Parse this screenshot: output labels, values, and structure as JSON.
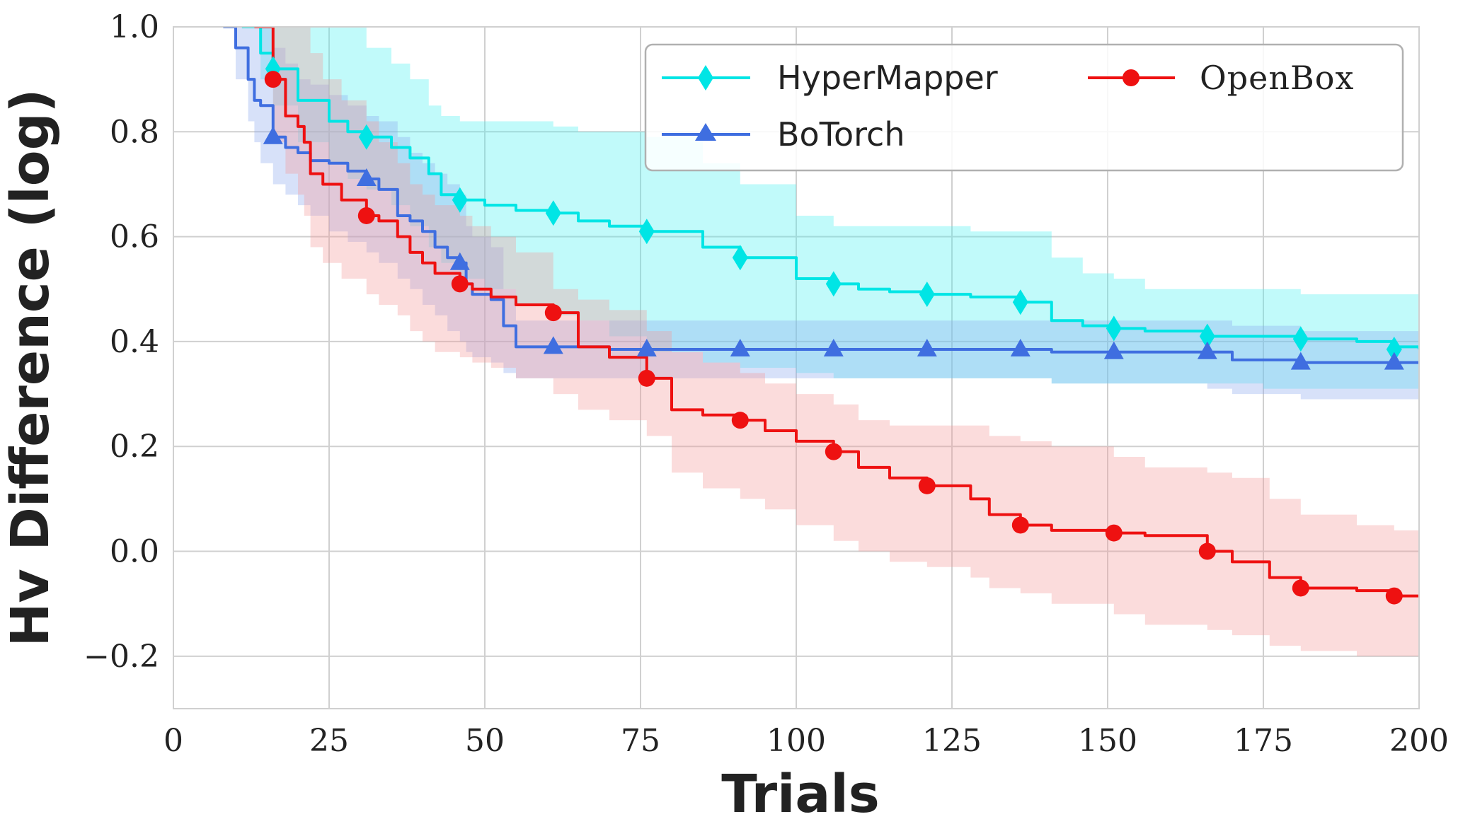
{
  "chart_data": {
    "type": "line",
    "title": "",
    "xlabel": "Trials",
    "ylabel": "Hv Difference (log)",
    "xlim": [
      0,
      200
    ],
    "ylim": [
      -0.3,
      1.0
    ],
    "x_ticks": [
      0,
      25,
      50,
      75,
      100,
      125,
      150,
      175,
      200
    ],
    "x_tick_labels": [
      "0",
      "25",
      "50",
      "75",
      "100",
      "125",
      "150",
      "175",
      "200"
    ],
    "y_ticks": [
      -0.2,
      0.0,
      0.2,
      0.4,
      0.6,
      0.8,
      1.0
    ],
    "y_tick_labels": [
      "−0.2",
      "0.0",
      "0.2",
      "0.4",
      "0.6",
      "0.8",
      "1.0"
    ],
    "grid": true,
    "legend_position": "top-right",
    "series": [
      {
        "name": "HyperMapper",
        "color": "#00e5e5",
        "fill_color": "#4df0f0",
        "marker": "diamond",
        "x": [
          11,
          14,
          16,
          20,
          25,
          28,
          31,
          35,
          38,
          41,
          43,
          46,
          50,
          55,
          61,
          65,
          70,
          76,
          85,
          91,
          100,
          106,
          110,
          115,
          121,
          128,
          136,
          141,
          146,
          151,
          156,
          166,
          175,
          181,
          190,
          196,
          200
        ],
        "values": [
          1.0,
          0.95,
          0.92,
          0.86,
          0.82,
          0.8,
          0.79,
          0.77,
          0.75,
          0.72,
          0.68,
          0.67,
          0.66,
          0.65,
          0.645,
          0.63,
          0.62,
          0.61,
          0.58,
          0.56,
          0.52,
          0.51,
          0.5,
          0.495,
          0.49,
          0.485,
          0.475,
          0.44,
          0.43,
          0.425,
          0.42,
          0.41,
          0.41,
          0.405,
          0.4,
          0.39,
          0.385
        ],
        "upper": [
          1.0,
          1.0,
          1.0,
          1.0,
          1.0,
          1.0,
          0.96,
          0.93,
          0.9,
          0.85,
          0.83,
          0.82,
          0.82,
          0.82,
          0.81,
          0.8,
          0.8,
          0.79,
          0.74,
          0.7,
          0.64,
          0.62,
          0.62,
          0.62,
          0.62,
          0.61,
          0.61,
          0.56,
          0.53,
          0.52,
          0.5,
          0.5,
          0.5,
          0.49,
          0.49,
          0.49,
          0.49
        ],
        "lower": [
          1.0,
          0.9,
          0.85,
          0.78,
          0.74,
          0.71,
          0.69,
          0.66,
          0.62,
          0.58,
          0.55,
          0.52,
          0.5,
          0.47,
          0.45,
          0.44,
          0.41,
          0.38,
          0.36,
          0.35,
          0.34,
          0.33,
          0.33,
          0.33,
          0.33,
          0.33,
          0.33,
          0.32,
          0.32,
          0.32,
          0.32,
          0.32,
          0.31,
          0.31,
          0.31,
          0.31,
          0.31
        ],
        "marker_x": [
          16,
          31,
          46,
          61,
          76,
          91,
          106,
          121,
          136,
          151,
          166,
          181,
          196
        ],
        "marker_values": [
          0.92,
          0.79,
          0.67,
          0.645,
          0.61,
          0.56,
          0.51,
          0.49,
          0.475,
          0.425,
          0.41,
          0.405,
          0.385
        ]
      },
      {
        "name": "BoTorch",
        "color": "#3f6ee0",
        "fill_color": "#8ca8ef",
        "marker": "triangle",
        "x": [
          8,
          10,
          12,
          13,
          14,
          16,
          18,
          20,
          22,
          25,
          28,
          31,
          33,
          36,
          38,
          40,
          42,
          44,
          46,
          47,
          48,
          51,
          53,
          55,
          61,
          70,
          76,
          91,
          106,
          121,
          136,
          141,
          151,
          166,
          170,
          181,
          196,
          200
        ],
        "values": [
          1.0,
          0.96,
          0.9,
          0.86,
          0.85,
          0.79,
          0.77,
          0.76,
          0.745,
          0.74,
          0.725,
          0.71,
          0.69,
          0.64,
          0.63,
          0.61,
          0.58,
          0.56,
          0.55,
          0.51,
          0.49,
          0.48,
          0.43,
          0.39,
          0.39,
          0.385,
          0.385,
          0.385,
          0.385,
          0.385,
          0.385,
          0.38,
          0.38,
          0.38,
          0.365,
          0.36,
          0.36,
          0.36
        ],
        "upper": [
          1.0,
          1.0,
          1.0,
          1.0,
          1.0,
          0.96,
          0.93,
          0.9,
          0.89,
          0.87,
          0.85,
          0.83,
          0.82,
          0.79,
          0.76,
          0.74,
          0.72,
          0.7,
          0.68,
          0.62,
          0.6,
          0.58,
          0.5,
          0.44,
          0.44,
          0.44,
          0.44,
          0.44,
          0.44,
          0.44,
          0.44,
          0.44,
          0.44,
          0.44,
          0.43,
          0.42,
          0.42,
          0.42
        ],
        "lower": [
          1.0,
          0.9,
          0.82,
          0.78,
          0.74,
          0.7,
          0.68,
          0.66,
          0.64,
          0.61,
          0.59,
          0.57,
          0.55,
          0.52,
          0.5,
          0.47,
          0.45,
          0.42,
          0.4,
          0.38,
          0.37,
          0.36,
          0.34,
          0.33,
          0.33,
          0.33,
          0.33,
          0.33,
          0.33,
          0.33,
          0.33,
          0.32,
          0.32,
          0.31,
          0.3,
          0.29,
          0.29,
          0.29
        ],
        "marker_x": [
          16,
          31,
          46,
          61,
          76,
          91,
          106,
          121,
          136,
          151,
          166,
          181,
          196
        ],
        "marker_values": [
          0.79,
          0.71,
          0.55,
          0.39,
          0.385,
          0.385,
          0.385,
          0.385,
          0.385,
          0.38,
          0.38,
          0.36,
          0.36
        ]
      },
      {
        "name": "OpenBox",
        "color": "#ee1111",
        "fill_color": "#f49a9a",
        "marker": "circle",
        "x": [
          13,
          16,
          18,
          20,
          21,
          22,
          24,
          27,
          31,
          33,
          36,
          38,
          40,
          42,
          46,
          48,
          51,
          55,
          61,
          65,
          70,
          76,
          80,
          85,
          91,
          95,
          100,
          106,
          110,
          115,
          121,
          128,
          131,
          136,
          141,
          151,
          156,
          166,
          170,
          176,
          181,
          190,
          196,
          200
        ],
        "values": [
          1.0,
          0.9,
          0.83,
          0.81,
          0.78,
          0.72,
          0.7,
          0.67,
          0.64,
          0.63,
          0.6,
          0.57,
          0.55,
          0.53,
          0.51,
          0.5,
          0.485,
          0.47,
          0.455,
          0.39,
          0.37,
          0.33,
          0.27,
          0.26,
          0.25,
          0.23,
          0.21,
          0.19,
          0.16,
          0.14,
          0.125,
          0.1,
          0.07,
          0.05,
          0.04,
          0.035,
          0.03,
          0.0,
          -0.02,
          -0.05,
          -0.07,
          -0.075,
          -0.085,
          -0.085
        ],
        "upper": [
          1.0,
          1.0,
          1.0,
          1.0,
          1.0,
          0.95,
          0.9,
          0.86,
          0.82,
          0.78,
          0.74,
          0.7,
          0.68,
          0.66,
          0.64,
          0.62,
          0.6,
          0.57,
          0.5,
          0.48,
          0.46,
          0.42,
          0.38,
          0.36,
          0.34,
          0.32,
          0.3,
          0.28,
          0.25,
          0.24,
          0.24,
          0.24,
          0.22,
          0.21,
          0.2,
          0.18,
          0.16,
          0.15,
          0.14,
          0.1,
          0.07,
          0.05,
          0.04,
          0.035
        ],
        "lower": [
          1.0,
          0.78,
          0.72,
          0.68,
          0.64,
          0.58,
          0.55,
          0.52,
          0.49,
          0.47,
          0.45,
          0.42,
          0.4,
          0.38,
          0.37,
          0.36,
          0.35,
          0.33,
          0.3,
          0.27,
          0.25,
          0.22,
          0.15,
          0.12,
          0.1,
          0.08,
          0.05,
          0.02,
          0.0,
          -0.02,
          -0.03,
          -0.05,
          -0.07,
          -0.08,
          -0.1,
          -0.12,
          -0.14,
          -0.15,
          -0.16,
          -0.18,
          -0.19,
          -0.2,
          -0.2,
          -0.2
        ],
        "marker_x": [
          16,
          31,
          46,
          61,
          76,
          91,
          106,
          121,
          136,
          151,
          166,
          181,
          196
        ],
        "marker_values": [
          0.9,
          0.64,
          0.51,
          0.455,
          0.33,
          0.25,
          0.19,
          0.125,
          0.05,
          0.035,
          0.0,
          -0.07,
          -0.085
        ]
      }
    ]
  },
  "legend": {
    "hypermapper_label": "HyperMapper",
    "botorch_label": "BoTorch",
    "openbox_label": "OpenBox"
  }
}
